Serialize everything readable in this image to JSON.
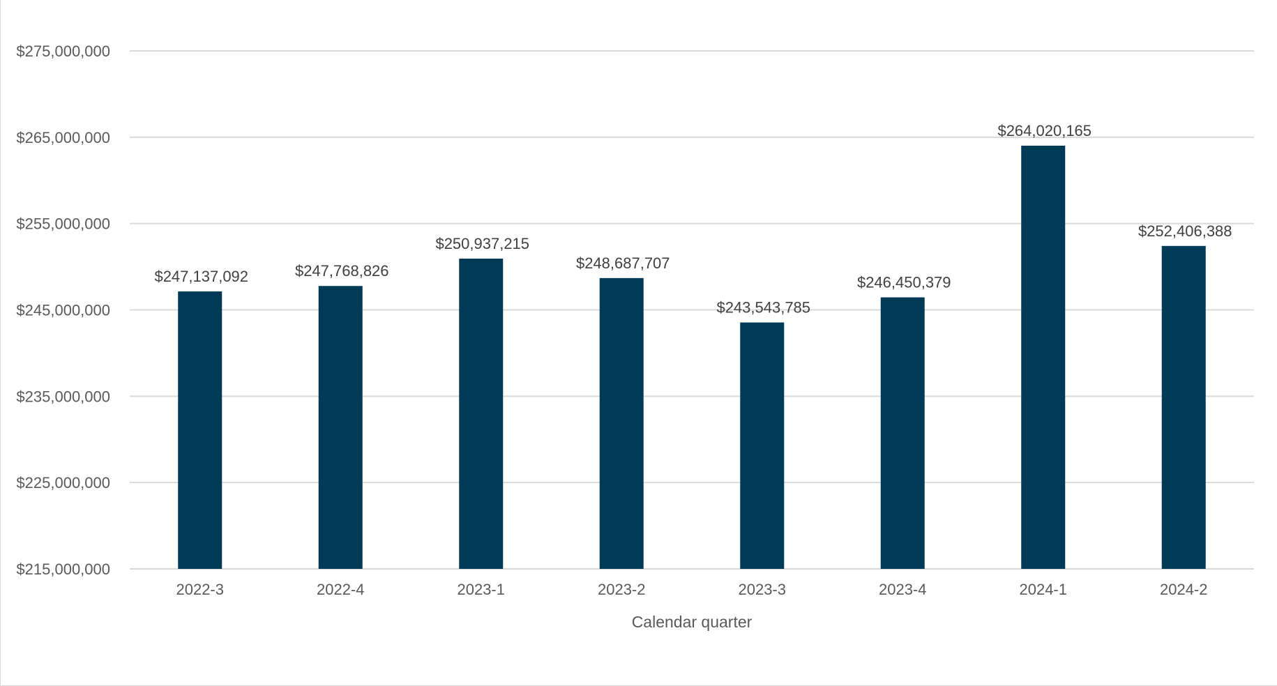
{
  "chart_data": {
    "type": "bar",
    "categories": [
      "2022-3",
      "2022-4",
      "2023-1",
      "2023-2",
      "2023-3",
      "2023-4",
      "2024-1",
      "2024-2"
    ],
    "values": [
      247137092,
      247768826,
      250937215,
      248687707,
      243543785,
      246450379,
      264020165,
      252406388
    ],
    "data_labels": [
      "$247,137,092",
      "$247,768,826",
      "$250,937,215",
      "$248,687,707",
      "$243,543,785",
      "$246,450,379",
      "$264,020,165",
      "$252,406,388"
    ],
    "title": "",
    "xlabel": "Calendar quarter",
    "ylabel": "",
    "ylim": [
      215000000,
      275000000
    ],
    "yticks": [
      215000000,
      225000000,
      235000000,
      245000000,
      255000000,
      265000000,
      275000000
    ],
    "ytick_labels": [
      "$215,000,000",
      "$225,000,000",
      "$235,000,000",
      "$245,000,000",
      "$255,000,000",
      "$265,000,000",
      "$275,000,000"
    ],
    "grid": true,
    "legend": "none",
    "bar_color": "#003a57"
  }
}
